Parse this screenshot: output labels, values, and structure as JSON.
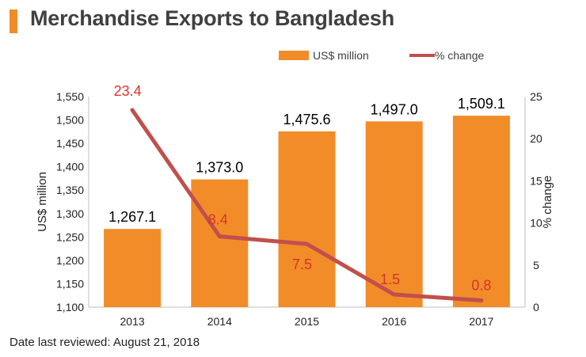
{
  "header": {
    "title": "Merchandise Exports to Bangladesh"
  },
  "footnote": "Date last reviewed: August 21, 2018",
  "colors": {
    "accent": "#f28c28",
    "bar": "#f28c28",
    "line": "#c0504d",
    "line_label": "#d9342b",
    "axis_text": "#222222"
  },
  "chart_data": {
    "type": "bar",
    "categories": [
      "2013",
      "2014",
      "2015",
      "2016",
      "2017"
    ],
    "series": [
      {
        "name": "US$ million",
        "type": "bar",
        "axis": "left",
        "values": [
          1267.1,
          1373.0,
          1475.6,
          1497.0,
          1509.1
        ],
        "labels": [
          "1,267.1",
          "1,373.0",
          "1,475.6",
          "1,497.0",
          "1,509.1"
        ]
      },
      {
        "name": "% change",
        "type": "line",
        "axis": "right",
        "values": [
          23.4,
          8.4,
          7.5,
          1.5,
          0.8
        ],
        "labels": [
          "23.4",
          "8.4",
          "7.5",
          "1.5",
          "0.8"
        ]
      }
    ],
    "ylabel": "US$ million",
    "y2label": "% change",
    "ylim": [
      1100,
      1550
    ],
    "y2lim": [
      0,
      25
    ],
    "yticks": [
      1100,
      1150,
      1200,
      1250,
      1300,
      1350,
      1400,
      1450,
      1500,
      1550
    ],
    "ytick_labels": [
      "1,100",
      "1,150",
      "1,200",
      "1,250",
      "1,300",
      "1,350",
      "1,400",
      "1,450",
      "1,500",
      "1,550"
    ],
    "y2ticks": [
      0,
      5,
      10,
      15,
      20,
      25
    ],
    "y2tick_labels": [
      "0",
      "5",
      "10",
      "15",
      "20",
      "25"
    ],
    "grid": false,
    "legend": "top-right"
  }
}
